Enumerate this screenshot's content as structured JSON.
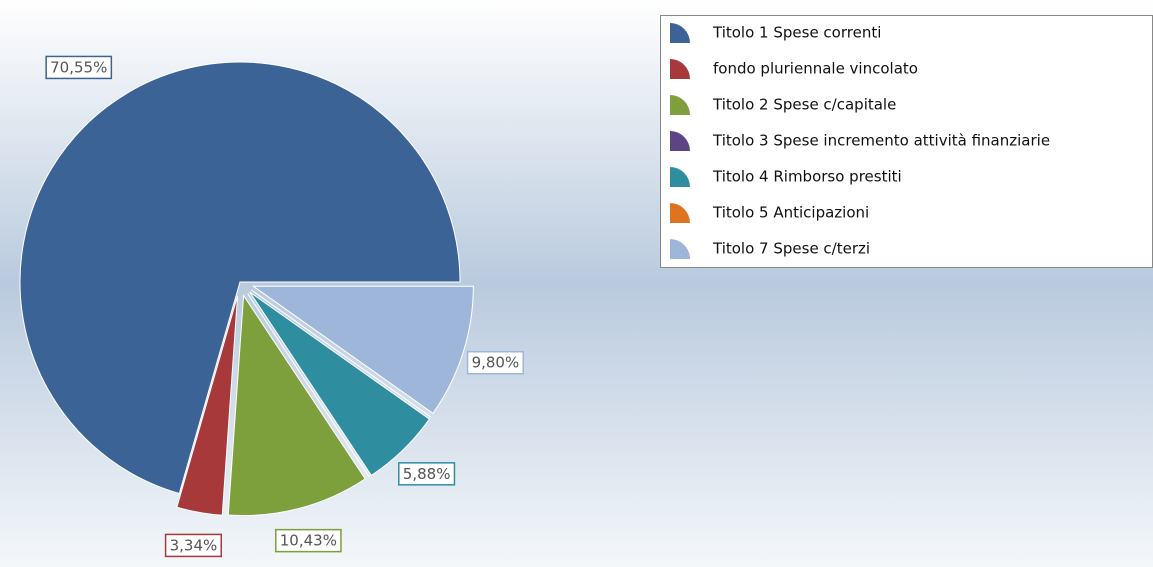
{
  "chart_data": {
    "type": "pie",
    "categories": [
      "Titolo 1 Spese correnti",
      "fondo pluriennale vincolato",
      "Titolo 2 Spese c/capitale",
      "Titolo 3 Spese incremento attività finanziarie",
      "Titolo 4 Rimborso prestiti",
      "Titolo 5 Anticipazioni",
      "Titolo 7 Spese c/terzi"
    ],
    "values": [
      70.55,
      3.34,
      10.43,
      0,
      5.88,
      0,
      9.8
    ],
    "value_labels": [
      "70,55%",
      "3,34%",
      "10,43%",
      null,
      "5,88%",
      null,
      "9,80%"
    ],
    "colors": [
      "#3b6396",
      "#a8393a",
      "#7d9f3c",
      "#5d4585",
      "#2e8ea0",
      "#e0741e",
      "#9db6da"
    ],
    "legend": "top-right"
  }
}
